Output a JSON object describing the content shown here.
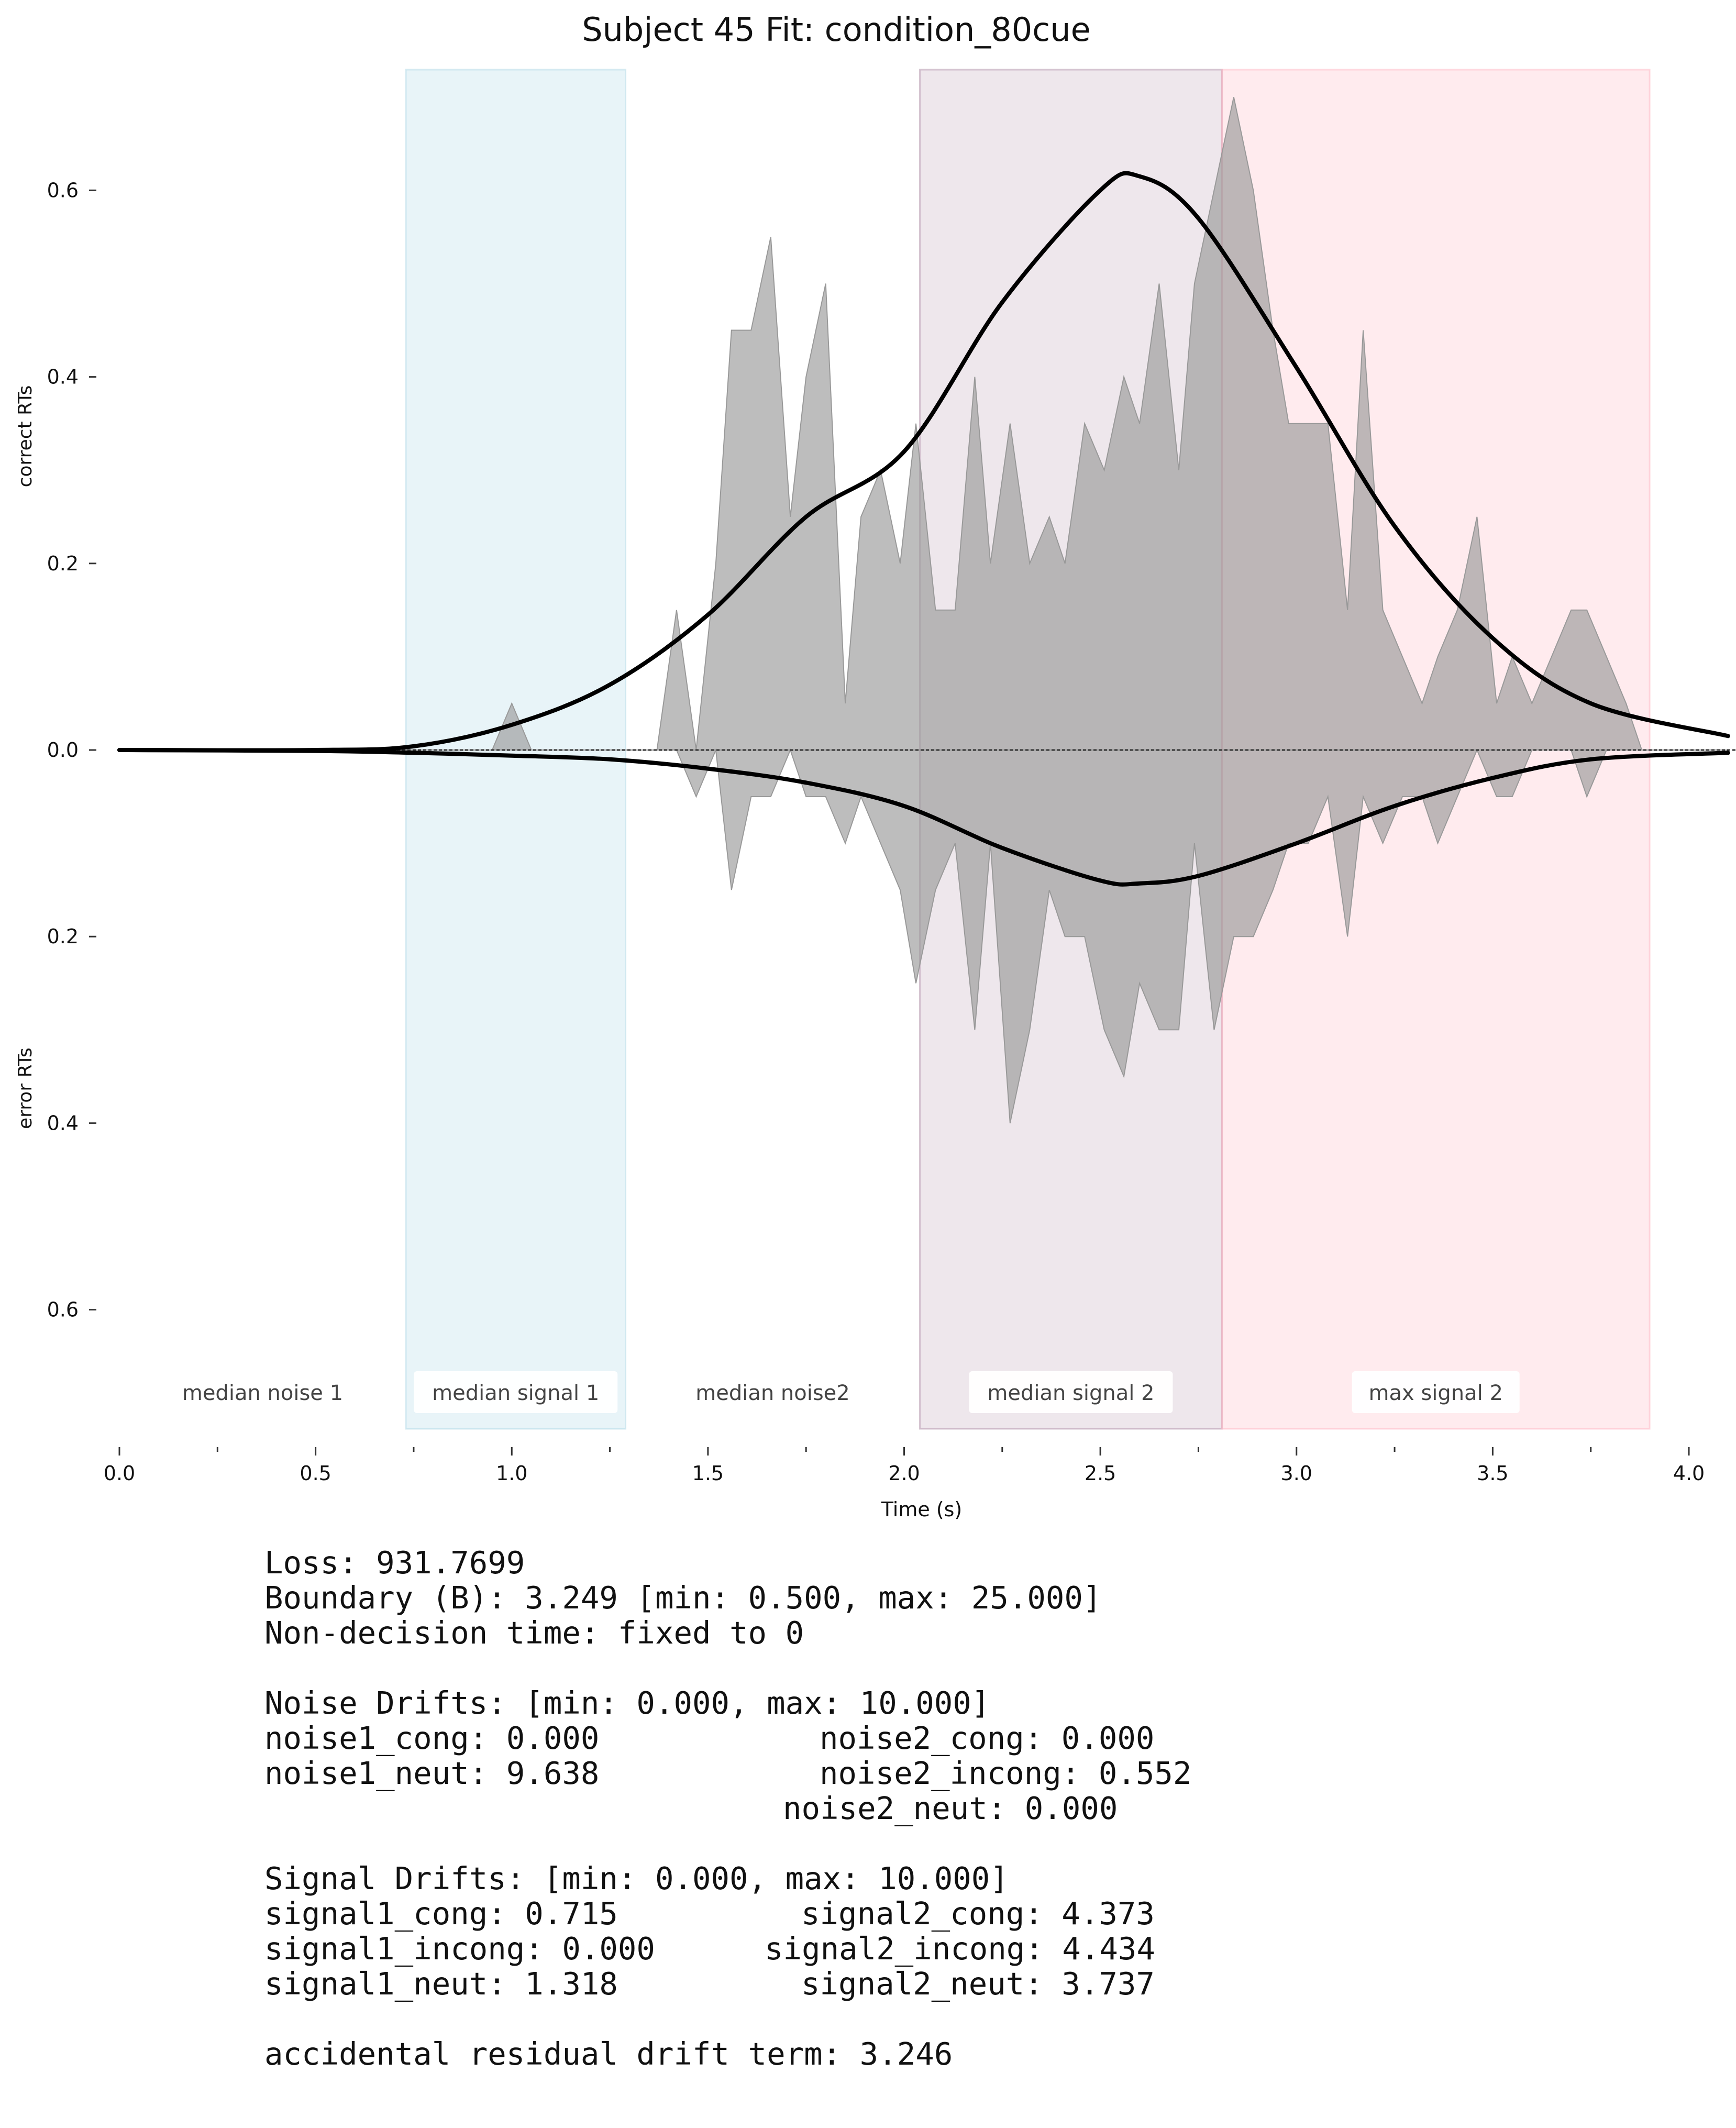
{
  "chart_data": {
    "type": "area",
    "title": "Subject 45 Fit: condition_80cue",
    "xlabel": "Time (s)",
    "ylabel_top": "correct RTs",
    "ylabel_bottom": "error RTs",
    "xlim": [
      0.0,
      4.1
    ],
    "ylim": [
      -0.73,
      0.73
    ],
    "x_ticks": [
      {
        "value": 0.0,
        "label": "0.0"
      },
      {
        "value": 0.5,
        "label": "0.5"
      },
      {
        "value": 1.0,
        "label": "1.0"
      },
      {
        "value": 1.5,
        "label": "1.5"
      },
      {
        "value": 2.0,
        "label": "2.0"
      },
      {
        "value": 2.5,
        "label": "2.5"
      },
      {
        "value": 3.0,
        "label": "3.0"
      },
      {
        "value": 3.5,
        "label": "3.5"
      },
      {
        "value": 4.0,
        "label": "4.0"
      }
    ],
    "x_minor_ticks": [
      0.25,
      0.75,
      1.25,
      1.75,
      2.25,
      2.75,
      3.25,
      3.75
    ],
    "y_ticks": [
      {
        "value": 0.6,
        "label": "0.6"
      },
      {
        "value": 0.4,
        "label": "0.4"
      },
      {
        "value": 0.2,
        "label": "0.2"
      },
      {
        "value": 0.0,
        "label": "0.0"
      },
      {
        "value": -0.2,
        "label": "0.2"
      },
      {
        "value": -0.4,
        "label": "0.4"
      },
      {
        "value": -0.6,
        "label": "0.6"
      }
    ],
    "regions": [
      {
        "label": "median noise 1",
        "x0": 0.0,
        "x1": 0.73,
        "color": "#ffffff",
        "opacity": 0,
        "label_box": false
      },
      {
        "label": "median signal 1",
        "x0": 0.73,
        "x1": 1.29,
        "color": "#add8e6",
        "opacity": 0.28,
        "label_box": true
      },
      {
        "label": "median noise2",
        "x0": 1.29,
        "x1": 2.04,
        "color": "#ffffff",
        "opacity": 0,
        "label_box": false
      },
      {
        "label": "median signal 2",
        "x0": 2.04,
        "x1": 2.81,
        "color": "#b090a8",
        "opacity": 0.22,
        "label_box": true
      },
      {
        "label": "max signal 2",
        "x0": 2.81,
        "x1": 3.9,
        "color": "#ffb6c1",
        "opacity": 0.27,
        "label_box": true
      }
    ],
    "series": [
      {
        "name": "",
        "style": "fill",
        "color": "#999999",
        "x": [
          0.0,
          0.95,
          1.0,
          1.05,
          1.37,
          1.42,
          1.47,
          1.52,
          1.56,
          1.61,
          1.66,
          1.71,
          1.75,
          1.8,
          1.85,
          1.89,
          1.94,
          1.99,
          2.03,
          2.08,
          2.13,
          2.18,
          2.22,
          2.27,
          2.32,
          2.37,
          2.41,
          2.46,
          2.51,
          2.56,
          2.6,
          2.65,
          2.7,
          2.74,
          2.79,
          2.84,
          2.89,
          2.94,
          2.98,
          3.03,
          3.08,
          3.13,
          3.17,
          3.22,
          3.27,
          3.32,
          3.36,
          3.41,
          3.46,
          3.51,
          3.55,
          3.6,
          3.65,
          3.7,
          3.74,
          3.79,
          3.84,
          3.88,
          3.93,
          4.1
        ],
        "values": [
          0.0,
          0.0,
          0.05,
          0.0,
          0.0,
          0.15,
          0.0,
          0.2,
          0.45,
          0.45,
          0.55,
          0.25,
          0.4,
          0.5,
          0.05,
          0.25,
          0.3,
          0.2,
          0.35,
          0.15,
          0.15,
          0.4,
          0.2,
          0.35,
          0.2,
          0.25,
          0.2,
          0.35,
          0.3,
          0.4,
          0.35,
          0.5,
          0.3,
          0.5,
          0.6,
          0.7,
          0.6,
          0.45,
          0.35,
          0.35,
          0.35,
          0.15,
          0.45,
          0.15,
          0.1,
          0.05,
          0.1,
          0.15,
          0.25,
          0.05,
          0.1,
          0.05,
          0.1,
          0.15,
          0.15,
          0.1,
          0.05,
          0.0,
          0.0,
          0.0
        ]
      },
      {
        "name": "",
        "style": "fill",
        "color": "#999999",
        "x": [
          0.0,
          1.37,
          1.42,
          1.47,
          1.52,
          1.56,
          1.61,
          1.66,
          1.71,
          1.75,
          1.8,
          1.85,
          1.89,
          1.94,
          1.99,
          2.03,
          2.08,
          2.13,
          2.18,
          2.22,
          2.27,
          2.32,
          2.37,
          2.41,
          2.46,
          2.51,
          2.56,
          2.6,
          2.65,
          2.7,
          2.74,
          2.79,
          2.84,
          2.89,
          2.94,
          2.98,
          3.03,
          3.08,
          3.13,
          3.17,
          3.22,
          3.27,
          3.32,
          3.36,
          3.41,
          3.46,
          3.51,
          3.55,
          3.6,
          3.65,
          3.7,
          3.74,
          3.79,
          3.84,
          3.88,
          3.93,
          4.1
        ],
        "values": [
          0.0,
          0.0,
          0.0,
          -0.05,
          0.0,
          -0.15,
          -0.05,
          -0.05,
          0.0,
          -0.05,
          -0.05,
          -0.1,
          -0.05,
          -0.1,
          -0.15,
          -0.25,
          -0.15,
          -0.1,
          -0.3,
          -0.1,
          -0.4,
          -0.3,
          -0.15,
          -0.2,
          -0.2,
          -0.3,
          -0.35,
          -0.25,
          -0.3,
          -0.3,
          -0.1,
          -0.3,
          -0.2,
          -0.2,
          -0.15,
          -0.1,
          -0.1,
          -0.05,
          -0.2,
          -0.05,
          -0.1,
          -0.05,
          -0.05,
          -0.1,
          -0.05,
          0.0,
          -0.05,
          -0.05,
          0.0,
          0.0,
          0.0,
          -0.05,
          0.0,
          0.0,
          0.0,
          0.0,
          0.0
        ]
      },
      {
        "name": "",
        "style": "line",
        "color": "#000000",
        "x": [
          0.0,
          0.5,
          0.75,
          1.0,
          1.25,
          1.5,
          1.75,
          2.0,
          2.25,
          2.5,
          2.6,
          2.75,
          3.0,
          3.25,
          3.5,
          3.75,
          4.1
        ],
        "values": [
          0.0,
          0.0,
          0.004,
          0.027,
          0.07,
          0.145,
          0.25,
          0.32,
          0.48,
          0.6,
          0.615,
          0.57,
          0.41,
          0.24,
          0.12,
          0.05,
          0.015
        ]
      },
      {
        "name": "",
        "style": "line",
        "color": "#000000",
        "x": [
          0.0,
          0.5,
          0.75,
          1.0,
          1.25,
          1.5,
          1.75,
          2.0,
          2.25,
          2.5,
          2.6,
          2.75,
          3.0,
          3.25,
          3.5,
          3.75,
          4.1
        ],
        "values": [
          0.0,
          -0.001,
          -0.003,
          -0.006,
          -0.01,
          -0.02,
          -0.035,
          -0.06,
          -0.105,
          -0.14,
          -0.143,
          -0.135,
          -0.1,
          -0.06,
          -0.03,
          -0.01,
          -0.003
        ]
      }
    ],
    "zero_line": true,
    "grid": false
  },
  "stats": {
    "lines": [
      [
        "Loss: 931.7699",
        ""
      ],
      [
        "Boundary (B): 3.249 [min: 0.500, max: 25.000]",
        ""
      ],
      [
        "Non-decision time: fixed to 0",
        ""
      ],
      [
        "",
        ""
      ],
      [
        "Noise Drifts: [min: 0.000, max: 10.000]",
        ""
      ],
      [
        "noise1_cong: 0.000",
        "noise2_cong: 0.000"
      ],
      [
        "noise1_neut: 9.638",
        "noise2_incong: 0.552"
      ],
      [
        "",
        "noise2_neut: 0.000"
      ],
      [
        "",
        ""
      ],
      [
        "Signal Drifts: [min: 0.000, max: 10.000]",
        ""
      ],
      [
        "signal1_cong: 0.715",
        "signal2_cong: 4.373"
      ],
      [
        "signal1_incong: 0.000",
        "signal2_incong: 4.434"
      ],
      [
        "signal1_neut: 1.318",
        "signal2_neut: 3.737"
      ],
      [
        "",
        ""
      ],
      [
        "accidental residual drift term: 3.246",
        ""
      ]
    ]
  }
}
